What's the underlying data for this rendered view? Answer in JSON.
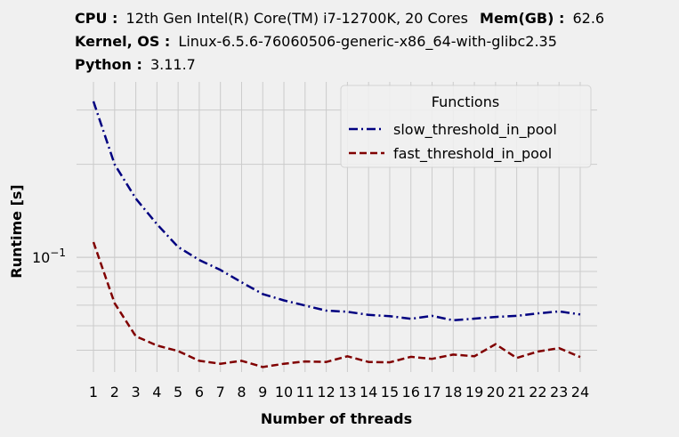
{
  "header": {
    "cpu_label": "CPU :",
    "cpu_value": "12th Gen Intel(R) Core(TM) i7-12700K, 20 Cores",
    "mem_label": "Mem(GB) :",
    "mem_value": "62.6",
    "kernel_label": "Kernel, OS :",
    "kernel_value": "Linux-6.5.6-76060506-generic-x86_64-with-glibc2.35",
    "python_label": "Python :",
    "python_value": "3.11.7"
  },
  "chart_data": {
    "type": "line",
    "title": "",
    "xlabel": "Number of threads",
    "ylabel": "Runtime [s]",
    "y_scale": "log",
    "ytick_label_base": "10",
    "ytick_label_exp": "−1",
    "ylim": [
      0.0425,
      0.37
    ],
    "xlim": [
      0.2,
      24.8
    ],
    "grid": true,
    "legend_title": "Functions",
    "legend_position": "top-right",
    "x": [
      1,
      2,
      3,
      4,
      5,
      6,
      7,
      8,
      9,
      10,
      11,
      12,
      13,
      14,
      15,
      16,
      17,
      18,
      19,
      20,
      21,
      22,
      23,
      24
    ],
    "series": [
      {
        "name": "slow_threshold_in_pool",
        "color": "#000080",
        "dash": "dashdot",
        "values": [
          0.32,
          0.2,
          0.155,
          0.128,
          0.108,
          0.098,
          0.091,
          0.083,
          0.076,
          0.0725,
          0.0698,
          0.0672,
          0.0666,
          0.0651,
          0.0645,
          0.0632,
          0.0646,
          0.0625,
          0.0633,
          0.0641,
          0.0646,
          0.0658,
          0.0668,
          0.0653
        ]
      },
      {
        "name": "fast_threshold_in_pool",
        "color": "#800000",
        "dash": "dashed",
        "values": [
          0.112,
          0.071,
          0.0555,
          0.0518,
          0.0497,
          0.0462,
          0.0452,
          0.0462,
          0.0441,
          0.0452,
          0.046,
          0.0458,
          0.0478,
          0.0458,
          0.0457,
          0.0476,
          0.0469,
          0.0484,
          0.0478,
          0.0523,
          0.0472,
          0.0495,
          0.0508,
          0.0475
        ]
      }
    ]
  }
}
